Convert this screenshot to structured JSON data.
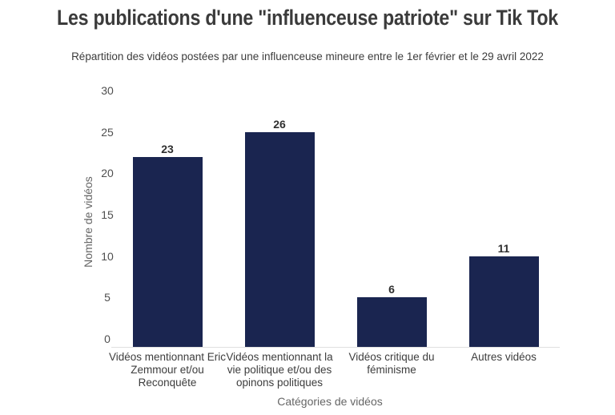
{
  "chart_data": {
    "type": "bar",
    "title": "Les publications d'une \"influenceuse patriote\" sur Tik Tok",
    "subtitle": "Répartition des vidéos postées par une influenceuse mineure entre le 1er février et le 29 avril 2022",
    "categories": [
      "Vidéos mentionnant Eric Zemmour et/ou Reconquête",
      "Vidéos mentionnant la vie politique et/ou des opinons politiques",
      "Vidéos critique du féminisme",
      "Autres vidéos"
    ],
    "values": [
      23,
      26,
      6,
      11
    ],
    "value_labels": [
      23,
      26,
      6,
      11
    ],
    "xlabel": "Catégories de vidéos",
    "ylabel": "Nombre de vidéos",
    "ylim": [
      0,
      30
    ],
    "yticks": [
      0,
      5,
      10,
      15,
      20,
      25,
      30
    ],
    "grid": false,
    "legend": false,
    "bar_color": "#1a2550"
  },
  "colors": {
    "bar": "#1a2550",
    "title_text": "#3b3b3b",
    "subtitle_text": "#3c3c3c",
    "tick_text": "#4f4f4f",
    "category_text": "#3d3d3d",
    "axis_title_text": "#666666",
    "value_label_text": "#2f2f2f",
    "baseline": "#e0e0e0",
    "background": "#ffffff"
  }
}
